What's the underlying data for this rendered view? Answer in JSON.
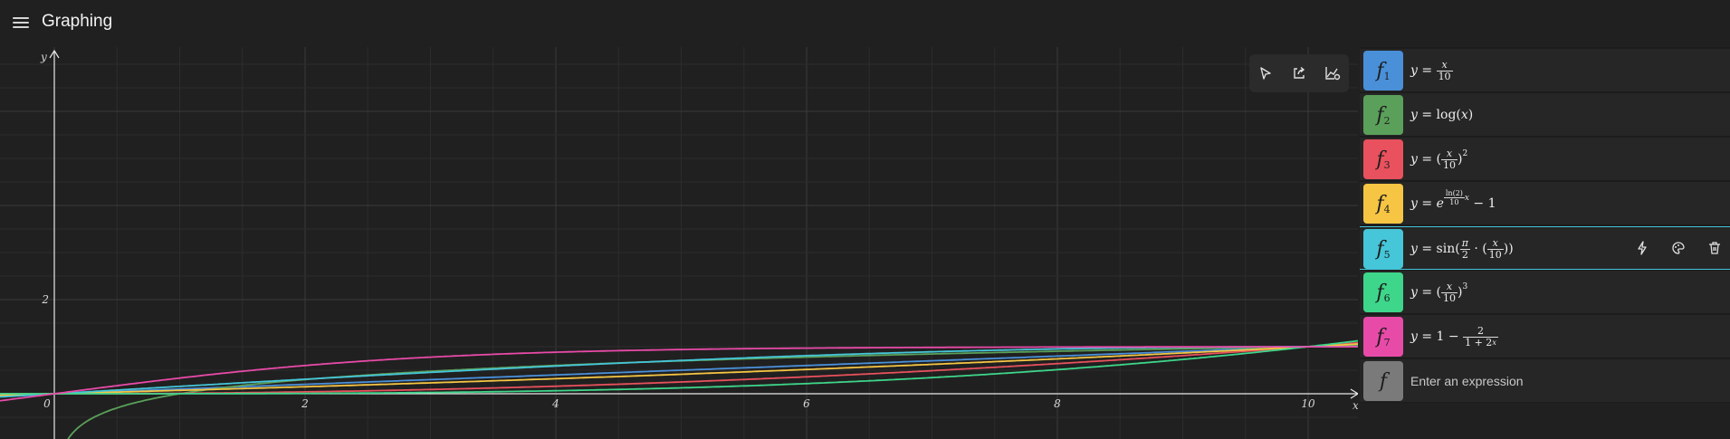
{
  "app": {
    "title": "Graphing"
  },
  "toolbar": {
    "trace_icon": "cursor-icon",
    "share_icon": "share-icon",
    "graph_options_icon": "graph-options-icon"
  },
  "axes": {
    "x_label": "x",
    "y_label": "y",
    "x_ticks": [
      "0",
      "2",
      "4",
      "6",
      "8",
      "10"
    ],
    "y_ticks": [
      "2"
    ]
  },
  "expressions": [
    {
      "name": "f",
      "index": "1",
      "color": "#4a90d9",
      "lhs": "y",
      "display": "x/10"
    },
    {
      "name": "f",
      "index": "2",
      "color": "#5aa05a",
      "lhs": "y",
      "display": "log(x)"
    },
    {
      "name": "f",
      "index": "3",
      "color": "#e8515d",
      "lhs": "y",
      "display": "(x/10)^2"
    },
    {
      "name": "f",
      "index": "4",
      "color": "#f5c543",
      "lhs": "y",
      "display": "e^(ln(2)/10 x) − 1"
    },
    {
      "name": "f",
      "index": "5",
      "color": "#45c6d9",
      "lhs": "y",
      "display": "sin(π/2 · (x/10))"
    },
    {
      "name": "f",
      "index": "6",
      "color": "#3ed68a",
      "lhs": "y",
      "display": "(x/10)^3"
    },
    {
      "name": "f",
      "index": "7",
      "color": "#e84aa8",
      "lhs": "y",
      "display": "1 − 2/(1+2^x)"
    }
  ],
  "new_expression": {
    "name": "f",
    "placeholder": "Enter an expression",
    "color": "#7a7a7a"
  },
  "selected_row_actions": [
    "function-analysis-icon",
    "style-palette-icon",
    "delete-icon"
  ]
}
